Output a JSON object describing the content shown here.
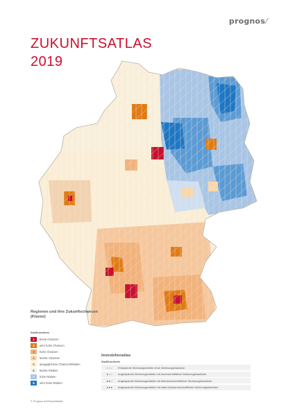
{
  "brand": {
    "logo_text": "prognos"
  },
  "title": {
    "line1": "ZUKUNFTSATLAS",
    "line2": "2019"
  },
  "colors": {
    "class1": "#c8102e",
    "class2": "#e07b14",
    "class3": "#f3b27a",
    "class4": "#fbd7a8",
    "class5": "#fbf1d8",
    "class6": "#f4f2ee",
    "class7": "#a8c5e6",
    "class8": "#5b9bd5",
    "class9": "#1f77c4",
    "title_red": "#c8102e"
  },
  "legend": {
    "title": "Regionen und ihre Zukunftschancen (Klasse)",
    "subtitle": "Stadt/Landkreis",
    "items": [
      {
        "num": "1",
        "label": "beste Chancen",
        "color": "#c8102e"
      },
      {
        "num": "2",
        "label": "sehr hohe Chancen",
        "color": "#e07b14"
      },
      {
        "num": "3",
        "label": "hohe Chancen",
        "color": "#f3b27a"
      },
      {
        "num": "4",
        "label": "leichte Chancen",
        "color": "#fbd7a8"
      },
      {
        "num": "5",
        "label": "ausgeglichene Chancen/Risiken",
        "color": "#fbf1d8"
      },
      {
        "num": "6",
        "label": "leichte Risiken",
        "color": "#f4f2ee"
      },
      {
        "num": "7",
        "label": "hohe Risiken",
        "color": "#a8c5e6"
      },
      {
        "num": "8",
        "label": "sehr hohe Risiken",
        "color": "#1f77c4"
      }
    ]
  },
  "immobilienatlas": {
    "title": "Immobilienatlas",
    "subtitle": "Stadt/Landkreis",
    "items": [
      {
        "dots": "○○○",
        "label": "Entspannte Wohnungsmärkte ohne Wohnungsbaulücke"
      },
      {
        "dots": "●○○",
        "label": "Angespannte Wohnungsmärkte mit durchschnittlicher Wohnungsbaulücke"
      },
      {
        "dots": "●●○",
        "label": "Angespannte Wohnungsmärkte mit überdurchschnittlicher Wohnungsbaulücke"
      },
      {
        "dots": "●●●",
        "label": "Angespannte Wohnungsmärkte mit stark überdurchschnittlicher Wohnungsbaulücke"
      }
    ]
  },
  "footnote": "© Prognos AG/Handelsblatt"
}
